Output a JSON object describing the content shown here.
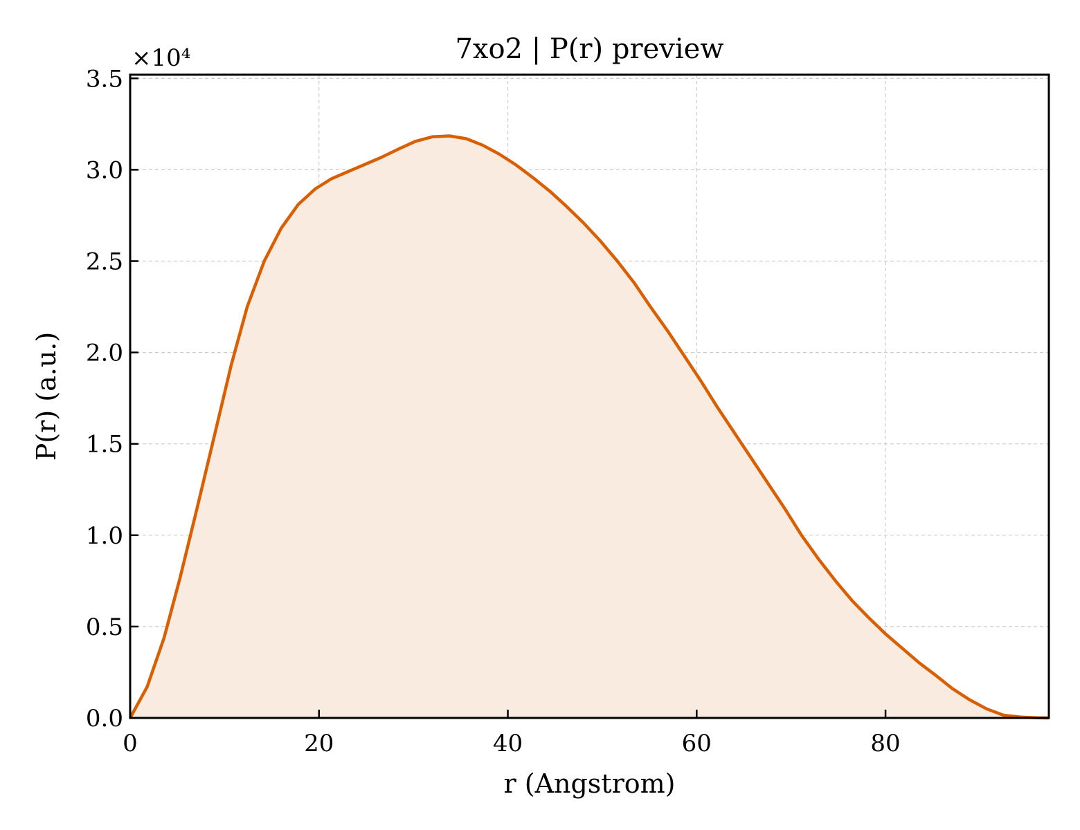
{
  "chart_data": {
    "type": "area",
    "title": "7xo2 | P(r) preview",
    "xlabel": "r (Angstrom)",
    "ylabel": "P(r) (a.u.)",
    "y_multiplier": "×10⁴",
    "xlim": [
      0,
      97.3
    ],
    "ylim": [
      0,
      35200
    ],
    "x_ticks": [
      0,
      20,
      40,
      60,
      80
    ],
    "y_ticks": [
      0,
      5000,
      10000,
      15000,
      20000,
      25000,
      30000,
      35000
    ],
    "x_tick_labels": [
      "0",
      "20",
      "40",
      "60",
      "80"
    ],
    "y_tick_labels": [
      "0.0",
      "0.5",
      "1.0",
      "1.5",
      "2.0",
      "2.5",
      "3.0",
      "3.5"
    ],
    "grid": true,
    "line_color": "#d95f02",
    "fill_color": "#f9ebe0",
    "series": [
      {
        "x": [
          0,
          1.8,
          3.6,
          5.3,
          7.1,
          8.9,
          10.7,
          12.4,
          14.2,
          16.0,
          17.8,
          19.6,
          21.3,
          23.1,
          24.9,
          26.7,
          28.5,
          30.2,
          32.0,
          33.8,
          35.6,
          37.3,
          39.1,
          40.9,
          42.7,
          44.5,
          46.2,
          48.0,
          49.8,
          51.6,
          53.4,
          55.1,
          56.9,
          58.7,
          60.5,
          62.2,
          64.0,
          65.8,
          67.6,
          69.4,
          71.1,
          72.9,
          74.7,
          76.5,
          78.2,
          80.0,
          81.8,
          83.6,
          85.4,
          87.1,
          88.9,
          90.7,
          92.5,
          94.3,
          96.0,
          97.3
        ],
        "y": [
          0,
          1700,
          4400,
          7700,
          11500,
          15400,
          19300,
          22500,
          25000,
          26800,
          28100,
          28950,
          29500,
          29900,
          30300,
          30700,
          31150,
          31550,
          31800,
          31850,
          31700,
          31350,
          30850,
          30250,
          29550,
          28800,
          28000,
          27100,
          26100,
          25000,
          23800,
          22500,
          21200,
          19800,
          18400,
          17000,
          15600,
          14200,
          12800,
          11400,
          10000,
          8700,
          7500,
          6400,
          5500,
          4600,
          3800,
          3000,
          2300,
          1600,
          1000,
          500,
          150,
          50,
          10,
          0
        ]
      }
    ]
  }
}
